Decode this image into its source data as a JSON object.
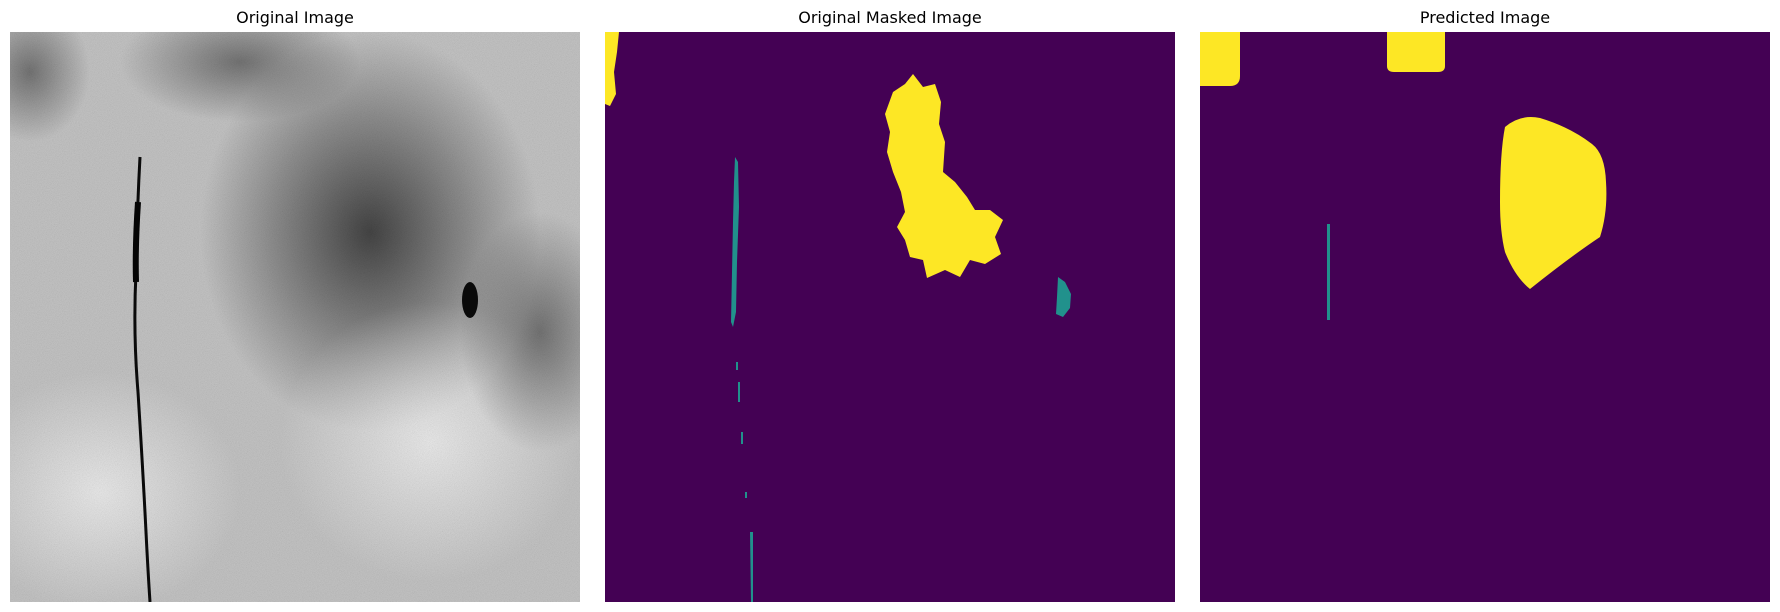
{
  "panels": [
    {
      "title": "Original Image"
    },
    {
      "title": "Original Masked Image"
    },
    {
      "title": "Predicted Image"
    }
  ],
  "colors": {
    "background_class": "#440154",
    "class_1": "#21918c",
    "class_2": "#fde725"
  }
}
